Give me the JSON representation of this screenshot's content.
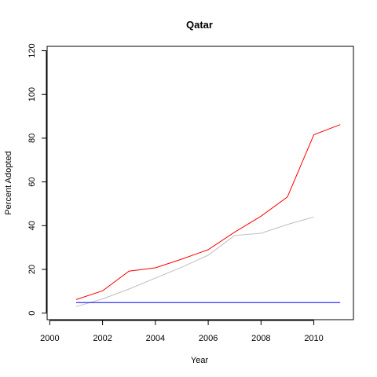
{
  "chart_data": {
    "type": "line",
    "title": "Qatar",
    "xlabel": "Year",
    "ylabel": "Percent Adopted",
    "xlim": [
      1999.9,
      2011.5
    ],
    "ylim": [
      -3,
      122
    ],
    "xticks": [
      "2000",
      "2002",
      "2004",
      "2006",
      "2008",
      "2010"
    ],
    "yticks": [
      "0",
      "20",
      "40",
      "60",
      "80",
      "100",
      "120"
    ],
    "grid": false,
    "series": [
      {
        "color": "#ff0000",
        "x": [
          2001,
          2002,
          2003,
          2004,
          2005,
          2006,
          2007,
          2008,
          2009,
          2010,
          2011
        ],
        "y": [
          6.2,
          10.2,
          19.2,
          20.7,
          24.7,
          29.0,
          37.0,
          44.3,
          53.1,
          81.6,
          86.2
        ]
      },
      {
        "color": "#bebebe",
        "x": [
          2001,
          2002,
          2003,
          2004,
          2005,
          2006,
          2007,
          2008,
          2009,
          2010
        ],
        "y": [
          3.0,
          6.5,
          11.0,
          16.0,
          21.0,
          26.5,
          35.5,
          36.5,
          40.5,
          44.0
        ]
      },
      {
        "color": "#0000ff",
        "x": [
          2001,
          2011
        ],
        "y": [
          4.8,
          4.8
        ]
      }
    ]
  }
}
